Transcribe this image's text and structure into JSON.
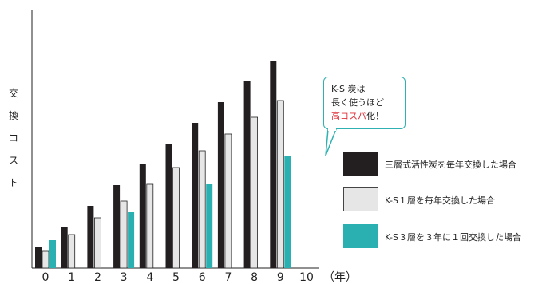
{
  "chart_data": {
    "type": "bar",
    "categories": [
      "0",
      "1",
      "2",
      "3",
      "4",
      "5",
      "6",
      "7",
      "8",
      "9",
      "10"
    ],
    "x_unit_label": "（年）",
    "ylabel": "交換コスト",
    "series": [
      {
        "name": "三層式活性炭を毎年交換した場合",
        "color": "#231f20",
        "values": [
          26,
          52,
          78,
          104,
          130,
          156,
          182,
          208,
          234,
          260,
          null
        ]
      },
      {
        "name": "K-S１層を毎年交換した場合",
        "color": "#e6e6e6",
        "values": [
          21,
          42,
          63,
          84,
          105,
          126,
          147,
          168,
          189,
          210,
          null
        ]
      },
      {
        "name": "K-S３層を３年に１回交換した場合",
        "color": "#2ab0b0",
        "values": [
          35,
          null,
          null,
          70,
          null,
          null,
          105,
          null,
          null,
          140,
          null
        ]
      }
    ],
    "annotation": {
      "lines": [
        "K-S 炭は",
        "長く使うほど"
      ],
      "accent": "高コスパ",
      "suffix": "化！"
    }
  }
}
